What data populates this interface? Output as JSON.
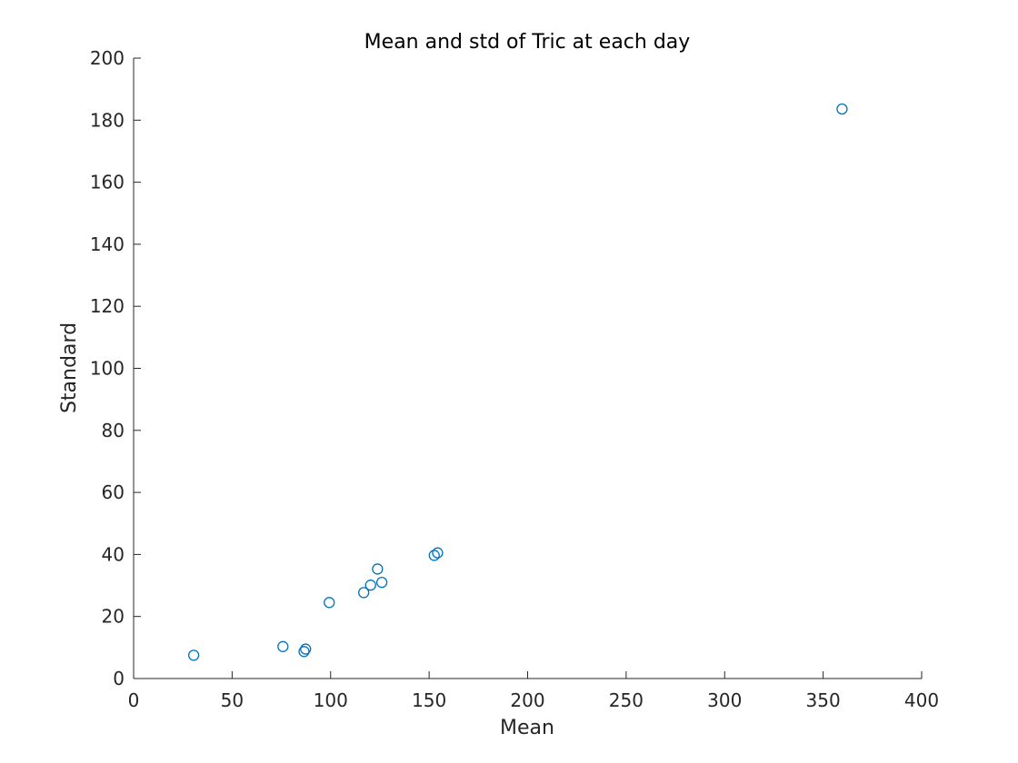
{
  "chart_data": {
    "type": "scatter",
    "title": "Mean and std of Tric at each day",
    "xlabel": "Mean",
    "ylabel": "Standard",
    "xlim": [
      0,
      400
    ],
    "ylim": [
      0,
      200
    ],
    "xticks": [
      0,
      50,
      100,
      150,
      200,
      250,
      300,
      350,
      400
    ],
    "yticks": [
      0,
      20,
      40,
      60,
      80,
      100,
      120,
      140,
      160,
      180,
      200
    ],
    "grid": false,
    "marker": "open-circle",
    "color": "#0072BD",
    "series": [
      {
        "points": [
          {
            "x": 30.5,
            "y": 7.5
          },
          {
            "x": 75.8,
            "y": 10.3
          },
          {
            "x": 86.5,
            "y": 8.7
          },
          {
            "x": 87.3,
            "y": 9.5
          },
          {
            "x": 99.3,
            "y": 24.5
          },
          {
            "x": 116.8,
            "y": 27.7
          },
          {
            "x": 120.3,
            "y": 30.1
          },
          {
            "x": 123.8,
            "y": 35.3
          },
          {
            "x": 126.0,
            "y": 31.0
          },
          {
            "x": 152.6,
            "y": 39.7
          },
          {
            "x": 154.3,
            "y": 40.5
          },
          {
            "x": 359.6,
            "y": 183.6
          }
        ]
      }
    ]
  }
}
